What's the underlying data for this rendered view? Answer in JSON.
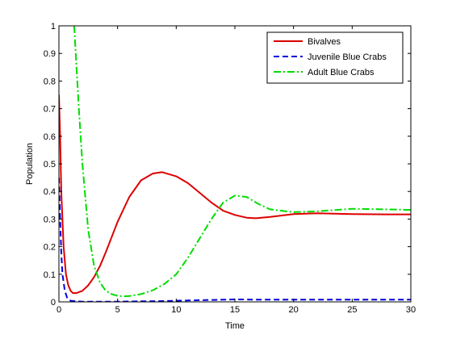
{
  "chart_data": {
    "type": "line",
    "title": "",
    "xlabel": "Time",
    "ylabel": "Population",
    "xlim": [
      0,
      30
    ],
    "ylim": [
      0,
      1
    ],
    "xticks": [
      0,
      5,
      10,
      15,
      20,
      25,
      30
    ],
    "yticks": [
      0,
      0.1,
      0.2,
      0.3,
      0.4,
      0.5,
      0.6,
      0.7,
      0.8,
      0.9,
      1
    ],
    "grid": false,
    "legend_position": "top-right",
    "series": [
      {
        "name": "Bivalves",
        "color": "#dd0000",
        "style": "solid",
        "x": [
          0,
          0.1,
          0.2,
          0.4,
          0.6,
          0.8,
          1,
          1.2,
          1.5,
          2,
          2.5,
          3,
          3.5,
          4,
          5,
          6,
          7,
          8,
          8.8,
          10,
          11,
          12,
          13,
          14,
          15,
          16,
          16.8,
          18,
          20,
          22,
          25,
          28,
          30
        ],
        "y": [
          0.75,
          0.6,
          0.4,
          0.2,
          0.1,
          0.06,
          0.04,
          0.032,
          0.032,
          0.04,
          0.06,
          0.09,
          0.13,
          0.18,
          0.29,
          0.38,
          0.44,
          0.465,
          0.47,
          0.455,
          0.43,
          0.395,
          0.36,
          0.33,
          0.315,
          0.305,
          0.303,
          0.308,
          0.318,
          0.321,
          0.318,
          0.317,
          0.317
        ]
      },
      {
        "name": "Juvenile Blue Crabs",
        "color": "#0000dd",
        "style": "dashed",
        "x": [
          0,
          0.1,
          0.2,
          0.3,
          0.5,
          0.7,
          1,
          1.5,
          2,
          3,
          5,
          7,
          9,
          10,
          12,
          14,
          15,
          17,
          20,
          25,
          30
        ],
        "y": [
          0.45,
          0.3,
          0.18,
          0.1,
          0.04,
          0.015,
          0.004,
          0.002,
          0.001,
          0.001,
          0.001,
          0.002,
          0.003,
          0.004,
          0.006,
          0.008,
          0.009,
          0.008,
          0.008,
          0.008,
          0.008
        ]
      },
      {
        "name": "Adult Blue Crabs",
        "color": "#00dd00",
        "style": "dashdot",
        "x": [
          1.3,
          1.5,
          1.7,
          2,
          2.5,
          3,
          3.5,
          4,
          4.5,
          5,
          5.5,
          6,
          7,
          8,
          9,
          10,
          11,
          12,
          13,
          14,
          15,
          16,
          17,
          18,
          20,
          22,
          25,
          28,
          30
        ],
        "y": [
          1.0,
          0.85,
          0.7,
          0.5,
          0.26,
          0.13,
          0.07,
          0.04,
          0.028,
          0.022,
          0.02,
          0.021,
          0.028,
          0.042,
          0.065,
          0.1,
          0.16,
          0.23,
          0.3,
          0.36,
          0.385,
          0.38,
          0.355,
          0.335,
          0.325,
          0.328,
          0.337,
          0.335,
          0.333
        ]
      }
    ]
  }
}
